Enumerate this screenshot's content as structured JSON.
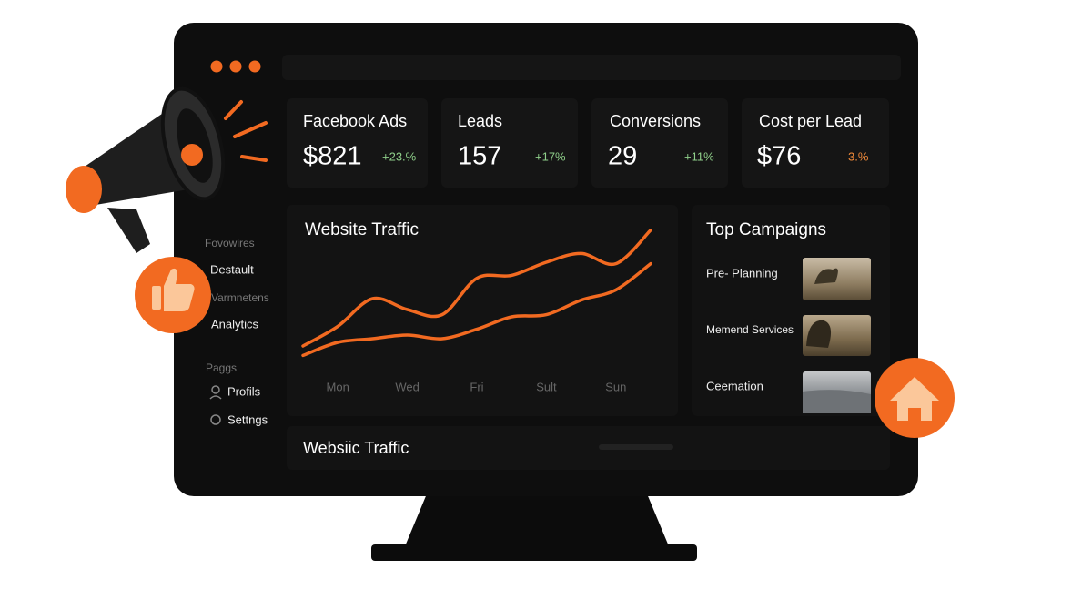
{
  "sidebar": {
    "sections": [
      {
        "heading": "Fovowires",
        "items": [
          "Destault"
        ]
      },
      {
        "heading": "Varmnetens",
        "items": [
          "Analytics"
        ]
      },
      {
        "heading": "Paggs",
        "items": [
          "Profils",
          "Settngs"
        ]
      }
    ]
  },
  "kpis": [
    {
      "title": "Facebook Ads",
      "value": "$821",
      "change": "+23.%"
    },
    {
      "title": "Leads",
      "value": "157",
      "change": "+17%"
    },
    {
      "title": "Conversions",
      "value": "29",
      "change": "+11%"
    },
    {
      "title": "Cost per Lead",
      "value": "$76",
      "change": "3.%"
    }
  ],
  "traffic": {
    "type": "line",
    "title": "Website Traffic",
    "categories": [
      null,
      "Mon",
      null,
      "Wed",
      null,
      "Fri",
      null,
      "Sult",
      null,
      "Sun",
      null
    ],
    "ylim": [
      0,
      100
    ],
    "series": [
      {
        "color": "#f26a21",
        "values": [
          12.5,
          26,
          45,
          37.5,
          34,
          59,
          61,
          70,
          76,
          69,
          92
        ]
      },
      {
        "color": "#f26a21",
        "values": [
          6,
          15,
          17.5,
          20,
          17.5,
          24,
          32.5,
          34,
          44,
          51,
          69
        ]
      }
    ]
  },
  "campaigns": {
    "title": "Top Campaigns",
    "items": [
      "Pre- Planning",
      "Memend Services",
      "Ceemation"
    ]
  },
  "footer_card": {
    "title": "Websiic Traffic"
  }
}
